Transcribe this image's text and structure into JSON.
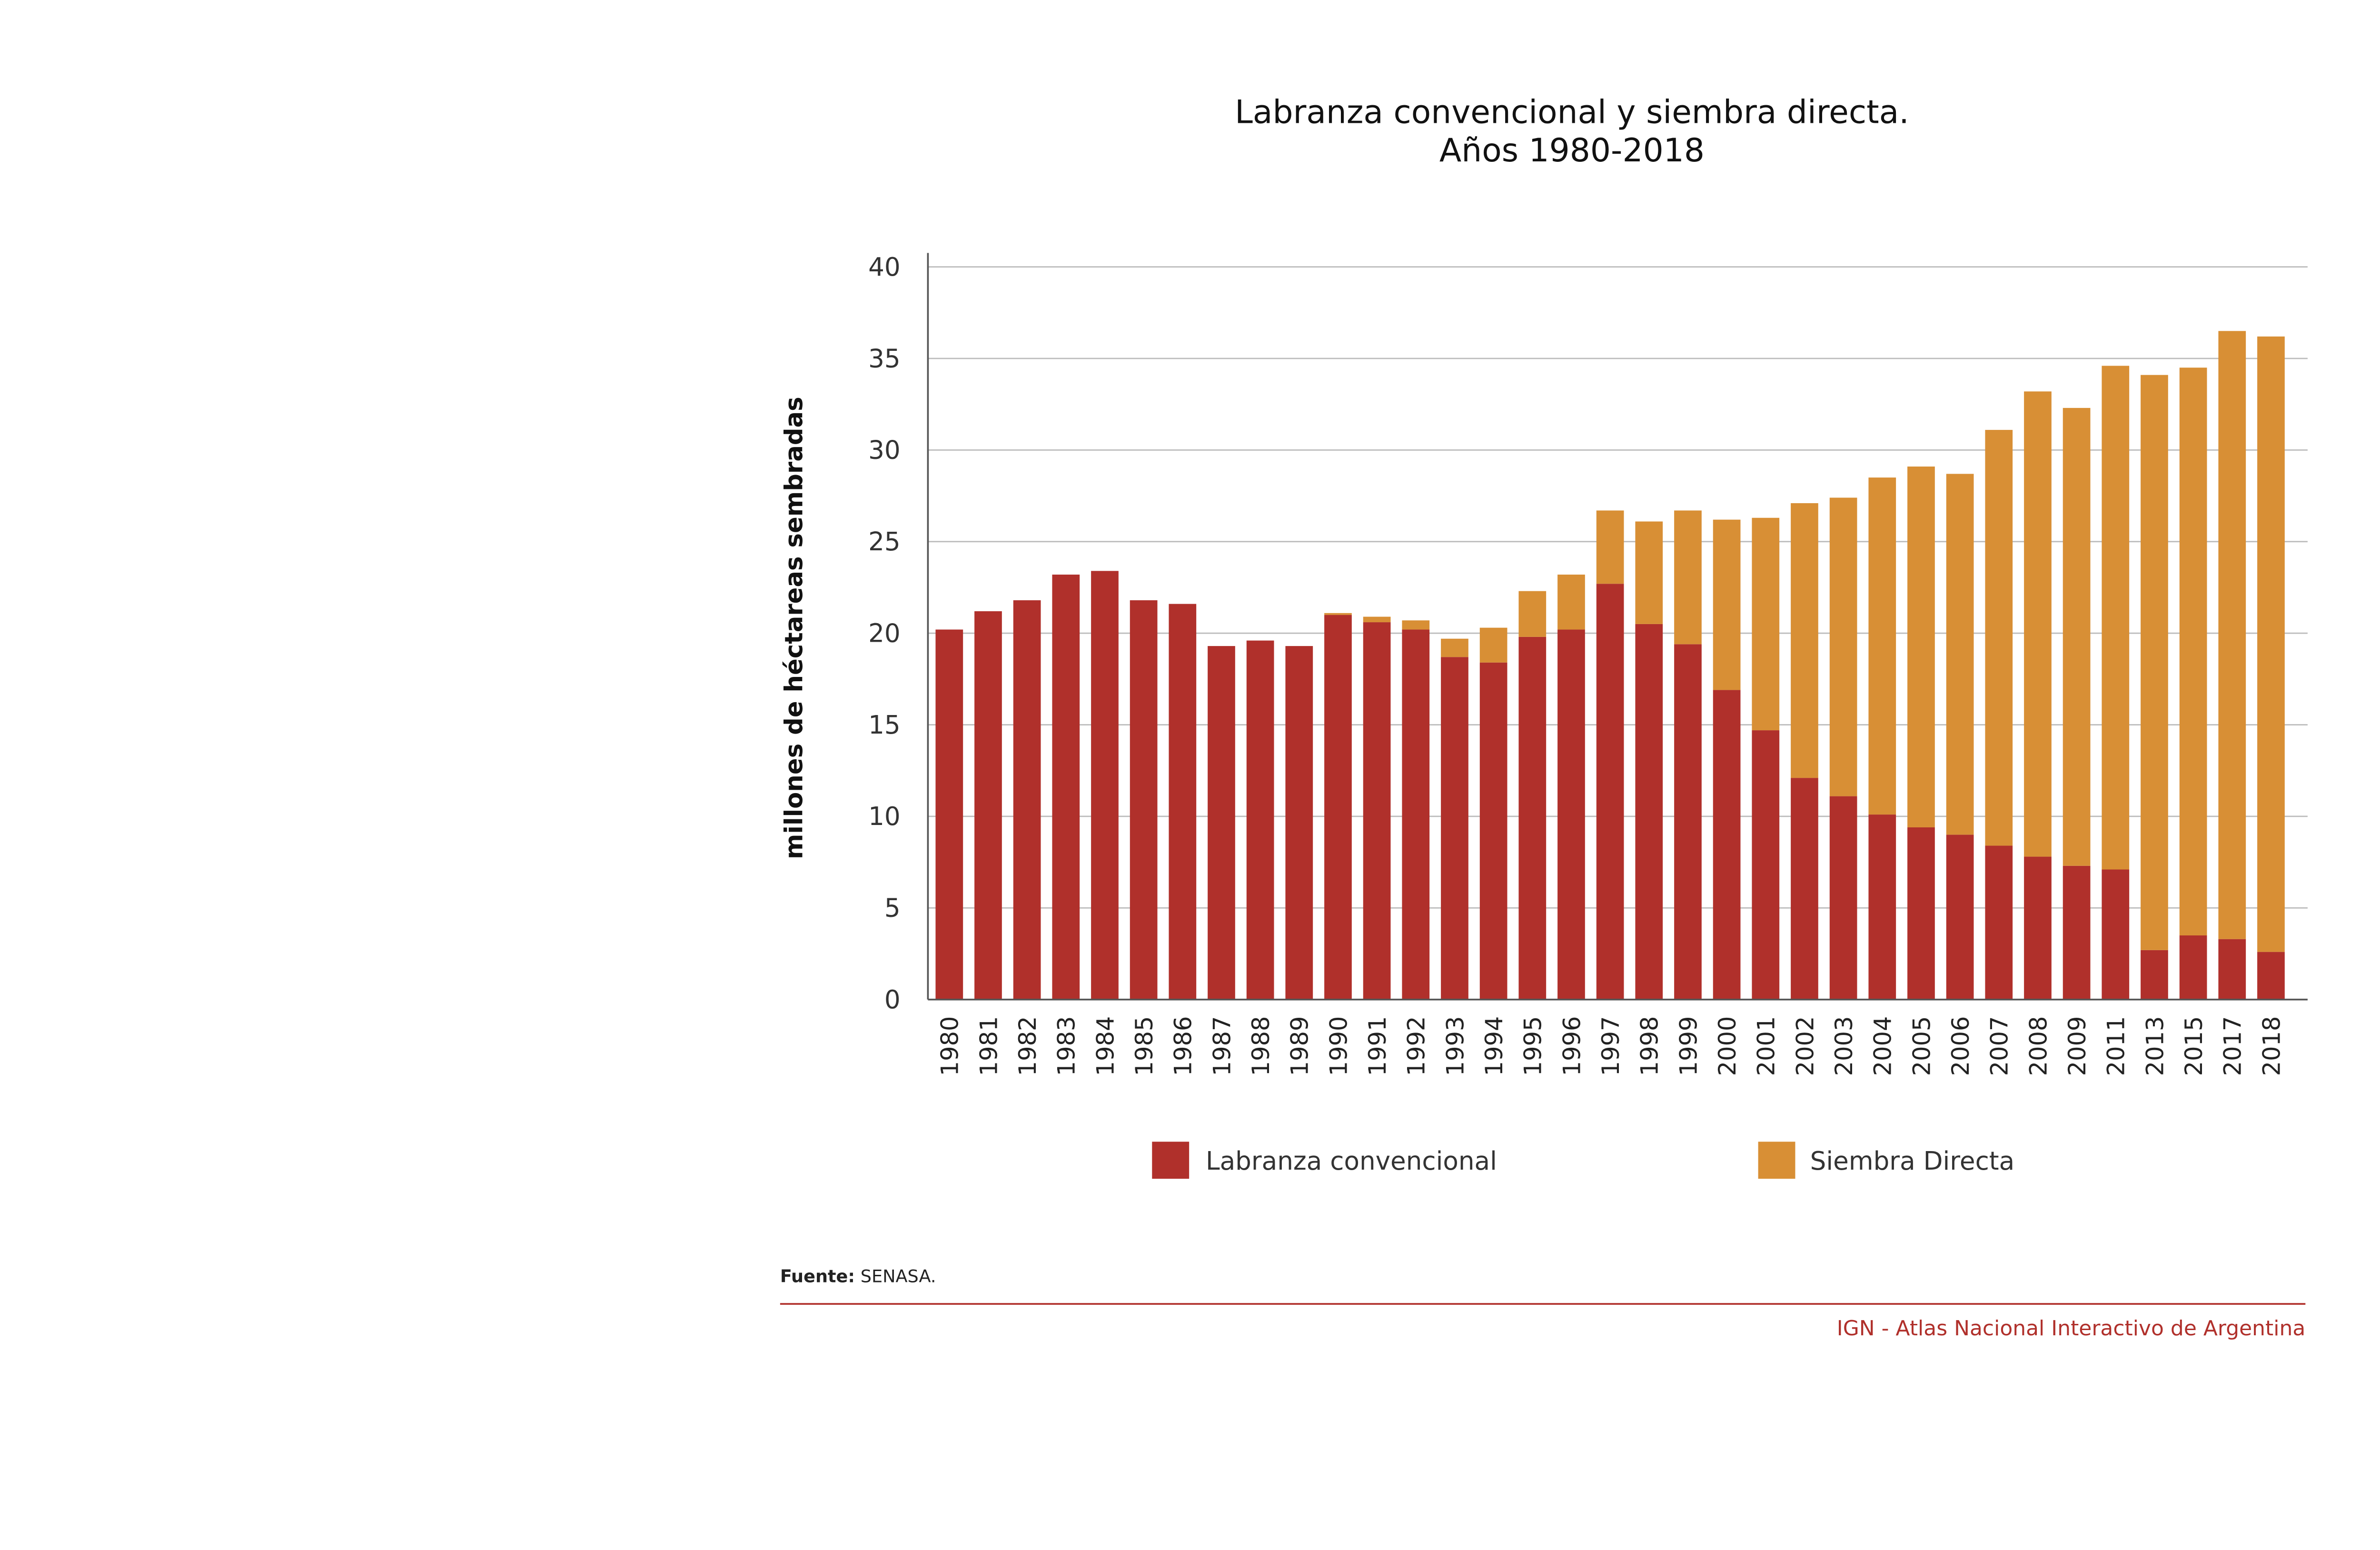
{
  "chart_data": {
    "type": "bar",
    "stacked": true,
    "title": [
      "Labranza convencional y siembra directa.",
      "Años 1980-2018"
    ],
    "xlabel": "",
    "ylabel": "millones de héctareas sembradas",
    "ylim": [
      0,
      40
    ],
    "yticks": [
      0,
      5,
      10,
      15,
      20,
      25,
      30,
      35,
      40
    ],
    "grid": true,
    "legend_placement": "bottom",
    "categories": [
      "1980",
      "1981",
      "1982",
      "1983",
      "1984",
      "1985",
      "1986",
      "1987",
      "1988",
      "1989",
      "1990",
      "1991",
      "1992",
      "1993",
      "1994",
      "1995",
      "1996",
      "1997",
      "1998",
      "1999",
      "2000",
      "2001",
      "2002",
      "2003",
      "2004",
      "2005",
      "2006",
      "2007",
      "2008",
      "2009",
      "2011",
      "2013",
      "2015",
      "2017",
      "2018"
    ],
    "series": [
      {
        "name": "Labranza convencional",
        "color": "#B0302B",
        "values": [
          20.2,
          21.2,
          21.8,
          23.2,
          23.4,
          21.8,
          21.6,
          19.3,
          19.6,
          19.3,
          21.0,
          20.6,
          20.2,
          18.7,
          18.4,
          19.8,
          20.2,
          22.7,
          20.5,
          19.4,
          16.9,
          14.7,
          12.1,
          11.1,
          10.1,
          9.4,
          9.0,
          8.4,
          7.8,
          7.3,
          7.1,
          2.7,
          3.5,
          3.3,
          2.6
        ]
      },
      {
        "name": "Siembra Directa",
        "color": "#D88F35",
        "values": [
          0,
          0,
          0,
          0,
          0,
          0,
          0,
          0,
          0,
          0,
          0.1,
          0.3,
          0.5,
          1.0,
          1.9,
          2.5,
          3.0,
          4.0,
          5.6,
          7.3,
          9.3,
          11.6,
          15.0,
          16.3,
          18.4,
          19.7,
          19.7,
          22.7,
          25.4,
          25.0,
          27.5,
          31.4,
          31.0,
          33.2,
          33.6
        ]
      }
    ]
  },
  "footer": {
    "source_label": "Fuente:",
    "source_value": "SENASA.",
    "credit": "IGN - Atlas Nacional Interactivo de Argentina"
  }
}
